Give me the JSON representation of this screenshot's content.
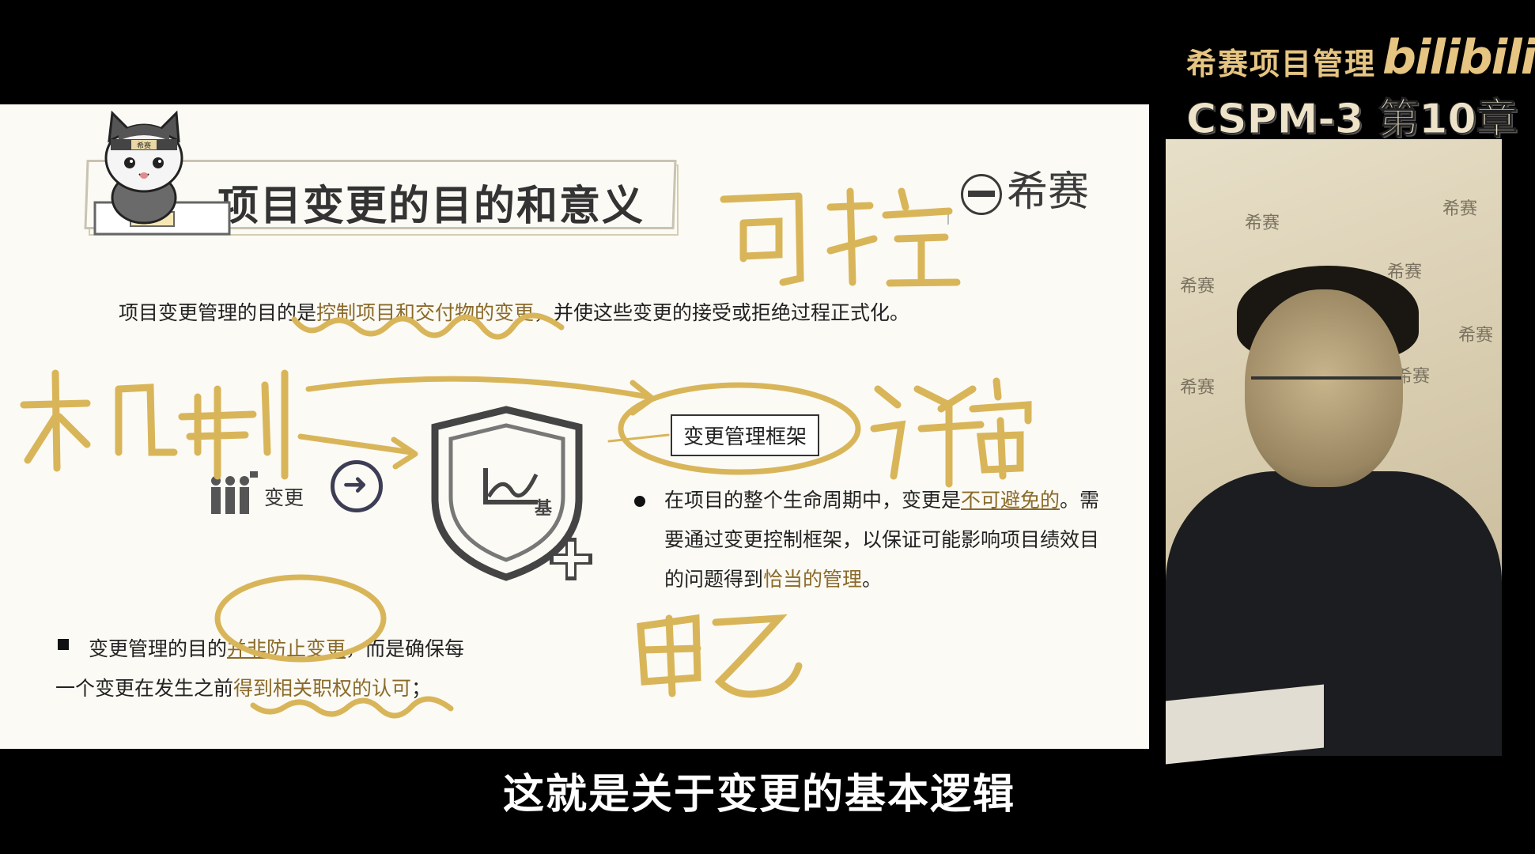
{
  "header": {
    "brand_name": "希赛项目管理",
    "brand_logo": "bilibili",
    "chapter_title": "CSPM-3 第10章"
  },
  "slide": {
    "title": "项目变更的目的和意义",
    "logo_text": "希赛",
    "mascot_badge": "希赛",
    "para_main_prefix": "项目变更管理的目的是",
    "para_main_highlight": "控制项目和交付物的变更",
    "para_main_suffix": "，并使这些变更的接受或拒绝过程正式化。",
    "framework_label": "变更管理框架",
    "change_label": "变更",
    "shield_label": "基",
    "bullet_right": {
      "part1": "在项目的整个生命周期中，变更是",
      "highlight1": "不可避免的",
      "part2": "。需要通过变更控制框架，以保证可能影响项目绩效目的问题得到",
      "highlight2": "恰当的管理",
      "part3": "。"
    },
    "bullet_bottom": {
      "part1": "变更管理的目的",
      "highlight1": "并非防止变更",
      "part2": "，而是确保每",
      "part3": "一个变更在发生之前",
      "highlight2": "得到相关职权的认可",
      "part4": "；"
    }
  },
  "annotations": {
    "handwritten_top": "可控",
    "handwritten_left": "机制",
    "handwritten_right": "评审",
    "handwritten_bottom": "甲乙"
  },
  "webcam": {
    "watermarks": [
      "希赛",
      "希赛",
      "希赛",
      "希赛",
      "希赛",
      "希赛",
      "希赛"
    ]
  },
  "subtitle": "这就是关于变更的基本逻辑",
  "colors": {
    "accent_gold": "#e6c582",
    "highlight_brown": "#8a6a2a",
    "annotation_gold": "#d9b55a"
  }
}
